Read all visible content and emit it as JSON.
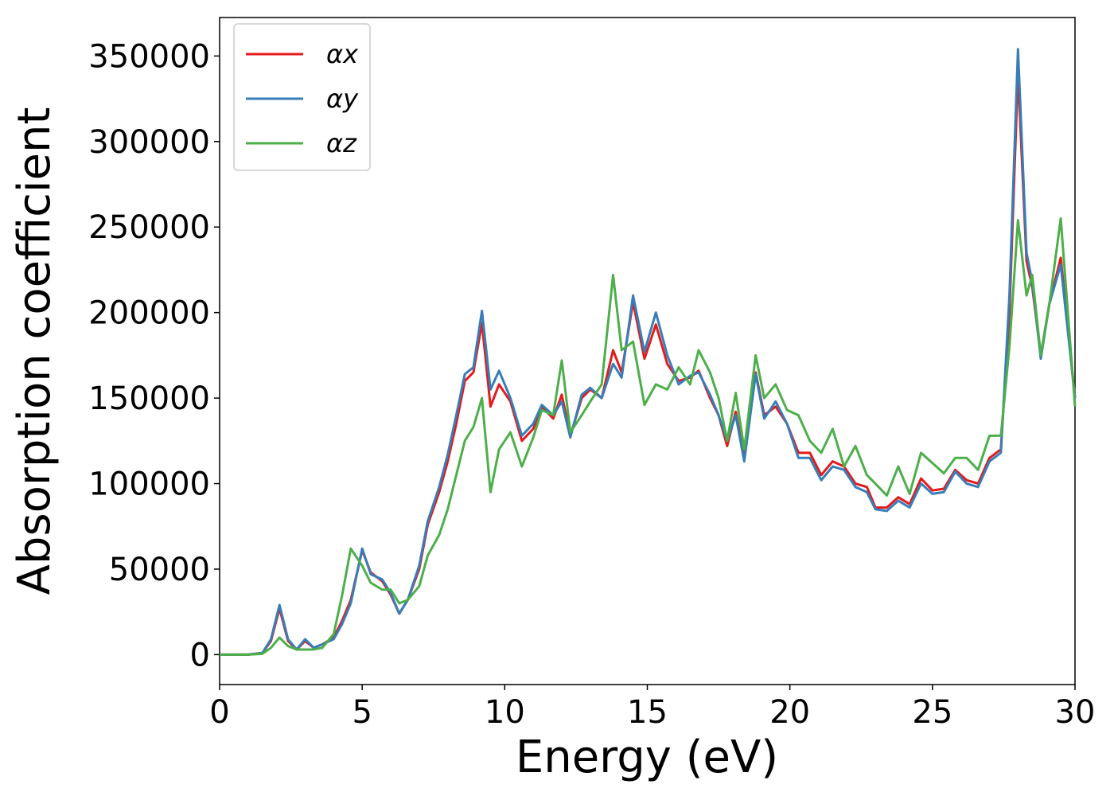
{
  "chart_data": {
    "type": "line",
    "xlabel": "Energy (eV)",
    "ylabel": "Absorption coefficient",
    "xlim": [
      0,
      30
    ],
    "xticks": [
      0,
      5,
      10,
      15,
      20,
      25,
      30
    ],
    "ylim": [
      -17500,
      372500
    ],
    "yticks": [
      0,
      50000,
      100000,
      150000,
      200000,
      250000,
      300000,
      350000
    ],
    "legend": "upper left",
    "grid": false,
    "x": [
      0,
      1,
      1.5,
      1.8,
      2.1,
      2.4,
      2.7,
      3.0,
      3.3,
      3.6,
      4.0,
      4.3,
      4.6,
      5.0,
      5.3,
      5.7,
      6.0,
      6.3,
      6.6,
      7.0,
      7.3,
      7.7,
      8.0,
      8.3,
      8.6,
      8.9,
      9.2,
      9.5,
      9.8,
      10.2,
      10.6,
      11.0,
      11.3,
      11.7,
      12.0,
      12.3,
      12.7,
      13.0,
      13.4,
      13.8,
      14.1,
      14.5,
      14.9,
      15.3,
      15.7,
      16.1,
      16.5,
      16.8,
      17.2,
      17.5,
      17.8,
      18.1,
      18.4,
      18.8,
      19.1,
      19.5,
      19.9,
      20.3,
      20.7,
      21.1,
      21.5,
      21.9,
      22.3,
      22.7,
      23.0,
      23.4,
      23.8,
      24.2,
      24.6,
      25.0,
      25.4,
      25.8,
      26.2,
      26.6,
      27.0,
      27.4,
      27.7,
      28.0,
      28.3,
      28.5,
      28.8,
      29.1,
      29.5,
      30.0
    ],
    "series": [
      {
        "name": "αx",
        "color": "#e41a1c",
        "values": [
          0,
          0,
          1000,
          8000,
          27000,
          8000,
          3000,
          8000,
          4000,
          6000,
          10000,
          20000,
          32000,
          61000,
          48000,
          43000,
          35000,
          24000,
          32000,
          50000,
          76000,
          95000,
          113000,
          135000,
          160000,
          165000,
          194000,
          145000,
          158000,
          148000,
          125000,
          132000,
          145000,
          138000,
          152000,
          128000,
          150000,
          155000,
          150000,
          178000,
          165000,
          206000,
          173000,
          193000,
          170000,
          160000,
          162000,
          166000,
          150000,
          140000,
          122000,
          142000,
          115000,
          165000,
          140000,
          145000,
          135000,
          118000,
          118000,
          105000,
          113000,
          110000,
          100000,
          98000,
          86000,
          86000,
          92000,
          88000,
          103000,
          96000,
          97000,
          108000,
          102000,
          100000,
          115000,
          120000,
          200000,
          340000,
          230000,
          215000,
          175000,
          205000,
          232000,
          150000
        ]
      },
      {
        "name": "αy",
        "color": "#377eb8",
        "values": [
          0,
          0,
          1000,
          9000,
          29000,
          9000,
          3000,
          9000,
          4000,
          6000,
          9000,
          18000,
          30000,
          62000,
          47000,
          44000,
          36000,
          24000,
          32000,
          52000,
          78000,
          98000,
          117000,
          140000,
          164000,
          168000,
          201000,
          155000,
          166000,
          150000,
          128000,
          135000,
          146000,
          140000,
          148000,
          127000,
          152000,
          156000,
          150000,
          170000,
          162000,
          210000,
          177000,
          200000,
          175000,
          158000,
          163000,
          165000,
          152000,
          140000,
          125000,
          140000,
          113000,
          164000,
          138000,
          148000,
          135000,
          115000,
          115000,
          102000,
          110000,
          108000,
          98000,
          95000,
          85000,
          84000,
          90000,
          86000,
          100000,
          94000,
          95000,
          107000,
          100000,
          98000,
          113000,
          118000,
          210000,
          354000,
          235000,
          218000,
          173000,
          205000,
          228000,
          150000
        ]
      },
      {
        "name": "αz",
        "color": "#4daf4a",
        "values": [
          0,
          0,
          500,
          4000,
          10000,
          5000,
          3000,
          3000,
          3000,
          4000,
          12000,
          35000,
          62000,
          52000,
          42000,
          38000,
          38000,
          30000,
          32000,
          40000,
          58000,
          70000,
          85000,
          105000,
          125000,
          133000,
          150000,
          95000,
          120000,
          130000,
          110000,
          127000,
          143000,
          140000,
          172000,
          130000,
          140000,
          148000,
          158000,
          222000,
          178000,
          183000,
          146000,
          158000,
          155000,
          168000,
          158000,
          178000,
          165000,
          150000,
          125000,
          153000,
          120000,
          175000,
          150000,
          158000,
          143000,
          140000,
          125000,
          118000,
          132000,
          110000,
          122000,
          105000,
          100000,
          93000,
          110000,
          94000,
          118000,
          112000,
          106000,
          115000,
          115000,
          108000,
          128000,
          128000,
          180000,
          254000,
          210000,
          222000,
          175000,
          205000,
          255000,
          145000
        ]
      }
    ]
  }
}
